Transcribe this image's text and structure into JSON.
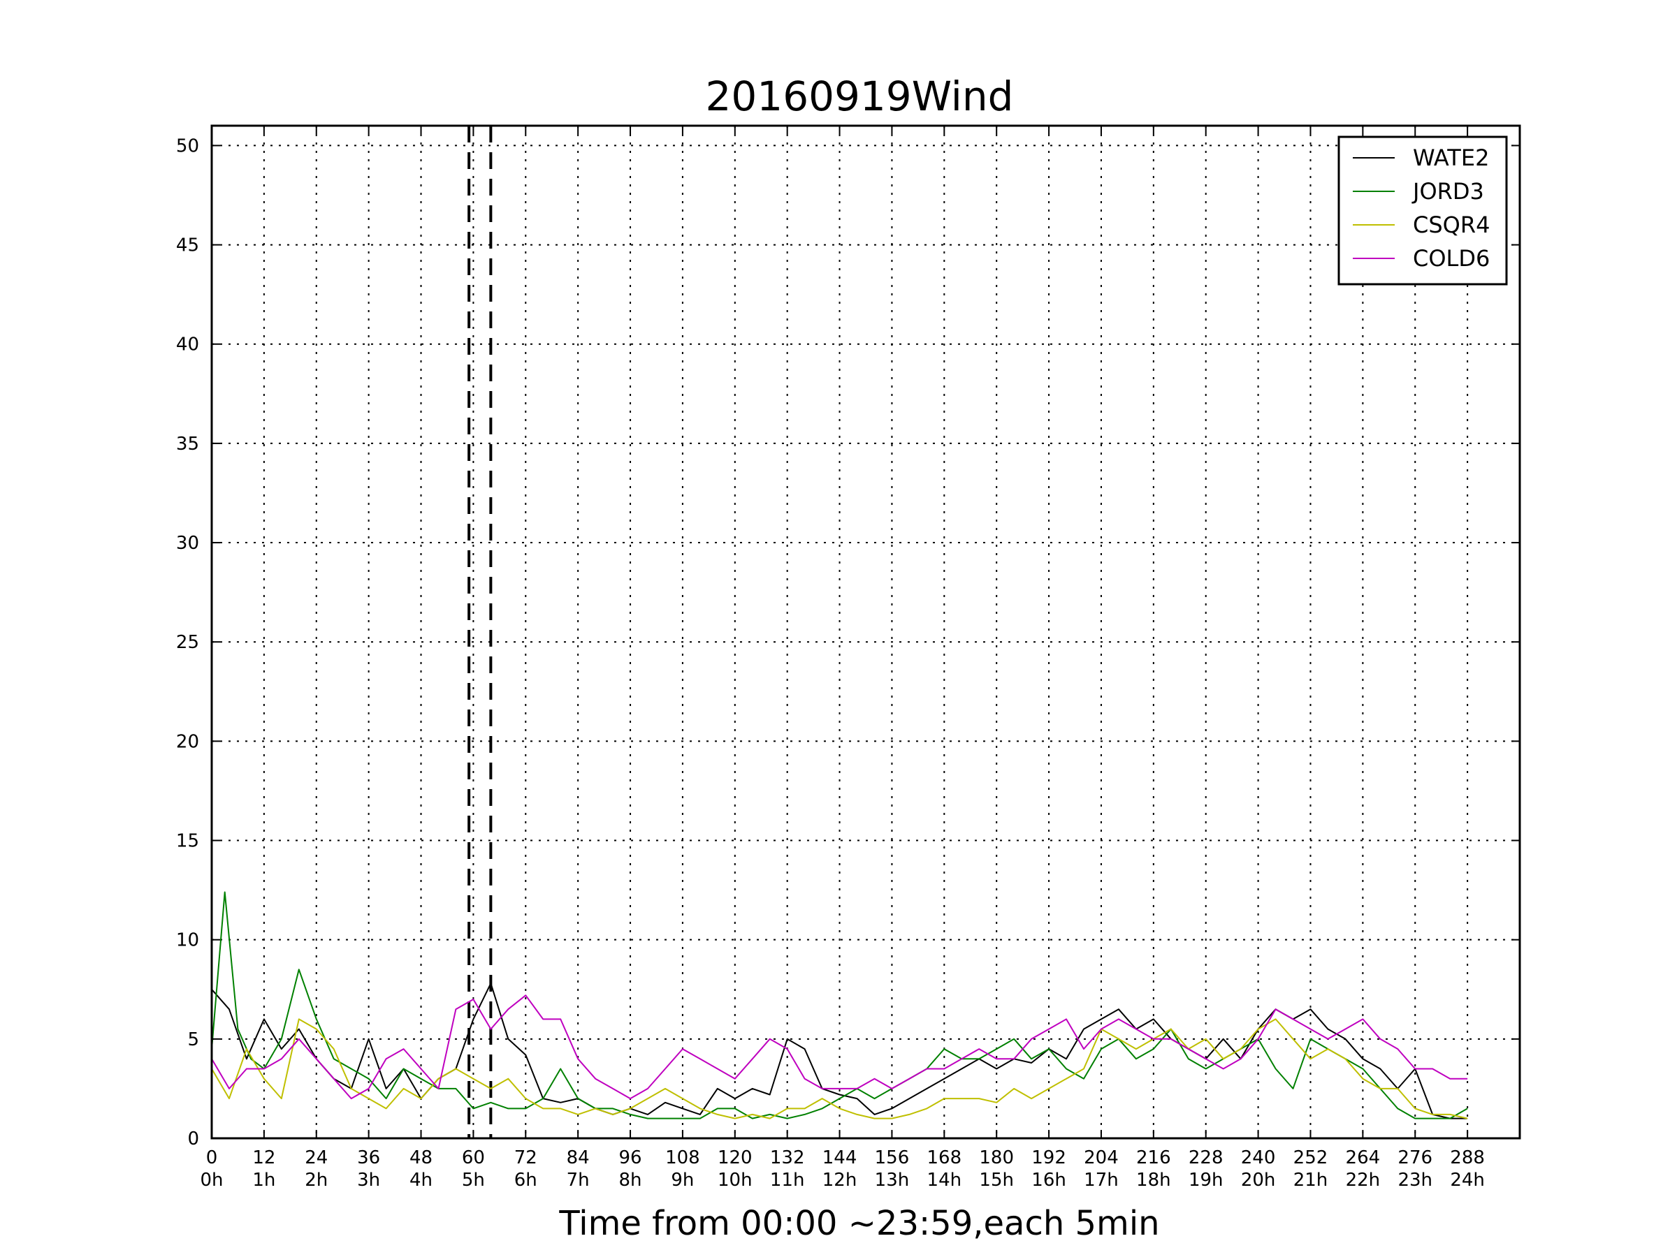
{
  "chart_data": {
    "type": "line",
    "title": "20160919Wind",
    "xlabel": "Time from 00:00 ~23:59,each 5min",
    "ylabel": "",
    "xlim": [
      0,
      300
    ],
    "ylim": [
      0,
      51
    ],
    "grid": true,
    "legend_position": "top-right",
    "yticks": [
      0,
      5,
      10,
      15,
      20,
      25,
      30,
      35,
      40,
      45,
      50
    ],
    "xticks": [
      0,
      12,
      24,
      36,
      48,
      60,
      72,
      84,
      96,
      108,
      120,
      132,
      144,
      156,
      168,
      180,
      192,
      204,
      216,
      228,
      240,
      252,
      264,
      276,
      288
    ],
    "xtick_hours": [
      "0h",
      "1h",
      "2h",
      "3h",
      "4h",
      "5h",
      "6h",
      "7h",
      "8h",
      "9h",
      "10h",
      "11h",
      "12h",
      "13h",
      "14h",
      "15h",
      "16h",
      "17h",
      "18h",
      "19h",
      "20h",
      "21h",
      "22h",
      "23h",
      "24h"
    ],
    "vertical_lines": [
      59,
      64
    ],
    "series": [
      {
        "name": "WATE2",
        "color": "#000000",
        "x": [
          0,
          4,
          8,
          12,
          16,
          20,
          24,
          28,
          32,
          36,
          40,
          44,
          48,
          52,
          56,
          60,
          64,
          68,
          72,
          76,
          80,
          84,
          88,
          92,
          96,
          100,
          104,
          108,
          112,
          116,
          120,
          124,
          128,
          132,
          136,
          140,
          144,
          148,
          152,
          156,
          160,
          164,
          168,
          172,
          176,
          180,
          184,
          188,
          192,
          196,
          200,
          204,
          208,
          212,
          216,
          220,
          224,
          228,
          232,
          236,
          240,
          244,
          248,
          252,
          256,
          260,
          264,
          268,
          272,
          276,
          280,
          284,
          288
        ],
        "y": [
          7.5,
          6.5,
          4.0,
          6.0,
          4.5,
          5.5,
          4.0,
          3.0,
          2.5,
          5.0,
          2.5,
          3.5,
          2.0,
          3.0,
          3.5,
          6.0,
          7.8,
          5.0,
          4.2,
          2.0,
          1.8,
          2.0,
          1.5,
          1.2,
          1.5,
          1.2,
          1.8,
          1.5,
          1.2,
          2.5,
          2.0,
          2.5,
          2.2,
          5.0,
          4.5,
          2.5,
          2.2,
          2.0,
          1.2,
          1.5,
          2.0,
          2.5,
          3.0,
          3.5,
          4.0,
          3.5,
          4.0,
          3.8,
          4.5,
          4.0,
          5.5,
          6.0,
          6.5,
          5.5,
          6.0,
          5.0,
          4.5,
          4.0,
          5.0,
          4.0,
          5.5,
          6.5,
          6.0,
          6.5,
          5.5,
          5.0,
          4.0,
          3.5,
          2.5,
          3.5,
          1.2,
          1.0,
          1.0
        ]
      },
      {
        "name": "JORD3",
        "color": "#008000",
        "x": [
          0,
          3,
          6,
          9,
          12,
          16,
          20,
          24,
          28,
          32,
          36,
          40,
          44,
          48,
          52,
          56,
          60,
          64,
          68,
          72,
          76,
          80,
          84,
          88,
          92,
          96,
          100,
          104,
          108,
          112,
          116,
          120,
          124,
          128,
          132,
          136,
          140,
          144,
          148,
          152,
          156,
          160,
          164,
          168,
          172,
          176,
          180,
          184,
          188,
          192,
          196,
          200,
          204,
          208,
          212,
          216,
          220,
          224,
          228,
          232,
          236,
          240,
          244,
          248,
          252,
          256,
          260,
          264,
          268,
          272,
          276,
          280,
          284,
          288
        ],
        "y": [
          4.5,
          12.4,
          5.5,
          4.0,
          3.5,
          5.0,
          8.5,
          6.0,
          4.0,
          3.5,
          3.0,
          2.0,
          3.5,
          3.0,
          2.5,
          2.5,
          1.5,
          1.8,
          1.5,
          1.5,
          2.0,
          3.5,
          2.0,
          1.5,
          1.5,
          1.2,
          1.0,
          1.0,
          1.0,
          1.0,
          1.5,
          1.5,
          1.0,
          1.2,
          1.0,
          1.2,
          1.5,
          2.0,
          2.5,
          2.0,
          2.5,
          3.0,
          3.5,
          4.5,
          4.0,
          4.0,
          4.5,
          5.0,
          4.0,
          4.5,
          3.5,
          3.0,
          4.5,
          5.0,
          4.0,
          4.5,
          5.5,
          4.0,
          3.5,
          4.0,
          4.5,
          5.0,
          3.5,
          2.5,
          5.0,
          4.5,
          4.0,
          3.5,
          2.5,
          1.5,
          1.0,
          1.0,
          1.0,
          1.5
        ]
      },
      {
        "name": "CSQR4",
        "color": "#bfbf00",
        "x": [
          0,
          4,
          8,
          12,
          16,
          20,
          24,
          28,
          32,
          36,
          40,
          44,
          48,
          52,
          56,
          60,
          64,
          68,
          72,
          76,
          80,
          84,
          88,
          92,
          96,
          100,
          104,
          108,
          112,
          116,
          120,
          124,
          128,
          132,
          136,
          140,
          144,
          148,
          152,
          156,
          160,
          164,
          168,
          172,
          176,
          180,
          184,
          188,
          192,
          196,
          200,
          204,
          208,
          212,
          216,
          220,
          224,
          228,
          232,
          236,
          240,
          244,
          248,
          252,
          256,
          260,
          264,
          268,
          272,
          276,
          280,
          284,
          288
        ],
        "y": [
          3.5,
          2.0,
          4.5,
          3.0,
          2.0,
          6.0,
          5.5,
          4.5,
          2.5,
          2.0,
          1.5,
          2.5,
          2.0,
          3.0,
          3.5,
          3.0,
          2.5,
          3.0,
          2.0,
          1.5,
          1.5,
          1.2,
          1.5,
          1.2,
          1.5,
          2.0,
          2.5,
          2.0,
          1.5,
          1.2,
          1.0,
          1.2,
          1.0,
          1.5,
          1.5,
          2.0,
          1.5,
          1.2,
          1.0,
          1.0,
          1.2,
          1.5,
          2.0,
          2.0,
          2.0,
          1.8,
          2.5,
          2.0,
          2.5,
          3.0,
          3.5,
          5.5,
          5.0,
          4.5,
          5.0,
          5.5,
          4.5,
          5.0,
          4.0,
          4.5,
          5.5,
          6.0,
          5.0,
          4.0,
          4.5,
          4.0,
          3.0,
          2.5,
          2.5,
          1.5,
          1.2,
          1.2,
          1.0
        ]
      },
      {
        "name": "COLD6",
        "color": "#bf00bf",
        "x": [
          0,
          4,
          8,
          12,
          16,
          20,
          24,
          28,
          32,
          36,
          40,
          44,
          48,
          52,
          56,
          60,
          64,
          68,
          72,
          76,
          80,
          84,
          88,
          92,
          96,
          100,
          104,
          108,
          112,
          116,
          120,
          124,
          128,
          132,
          136,
          140,
          144,
          148,
          152,
          156,
          160,
          164,
          168,
          172,
          176,
          180,
          184,
          188,
          192,
          196,
          200,
          204,
          208,
          212,
          216,
          220,
          224,
          228,
          232,
          236,
          240,
          244,
          248,
          252,
          256,
          260,
          264,
          268,
          272,
          276,
          280,
          284,
          288
        ],
        "y": [
          4.0,
          2.5,
          3.5,
          3.5,
          4.0,
          5.0,
          4.0,
          3.0,
          2.0,
          2.5,
          4.0,
          4.5,
          3.5,
          2.5,
          6.5,
          7.0,
          5.5,
          6.5,
          7.2,
          6.0,
          6.0,
          4.0,
          3.0,
          2.5,
          2.0,
          2.5,
          3.5,
          4.5,
          4.0,
          3.5,
          3.0,
          4.0,
          5.0,
          4.5,
          3.0,
          2.5,
          2.5,
          2.5,
          3.0,
          2.5,
          3.0,
          3.5,
          3.5,
          4.0,
          4.5,
          4.0,
          4.0,
          5.0,
          5.5,
          6.0,
          4.5,
          5.5,
          6.0,
          5.5,
          5.0,
          5.0,
          4.5,
          4.0,
          3.5,
          4.0,
          5.0,
          6.5,
          6.0,
          5.5,
          5.0,
          5.5,
          6.0,
          5.0,
          4.5,
          3.5,
          3.5,
          3.0,
          3.0
        ]
      }
    ]
  }
}
